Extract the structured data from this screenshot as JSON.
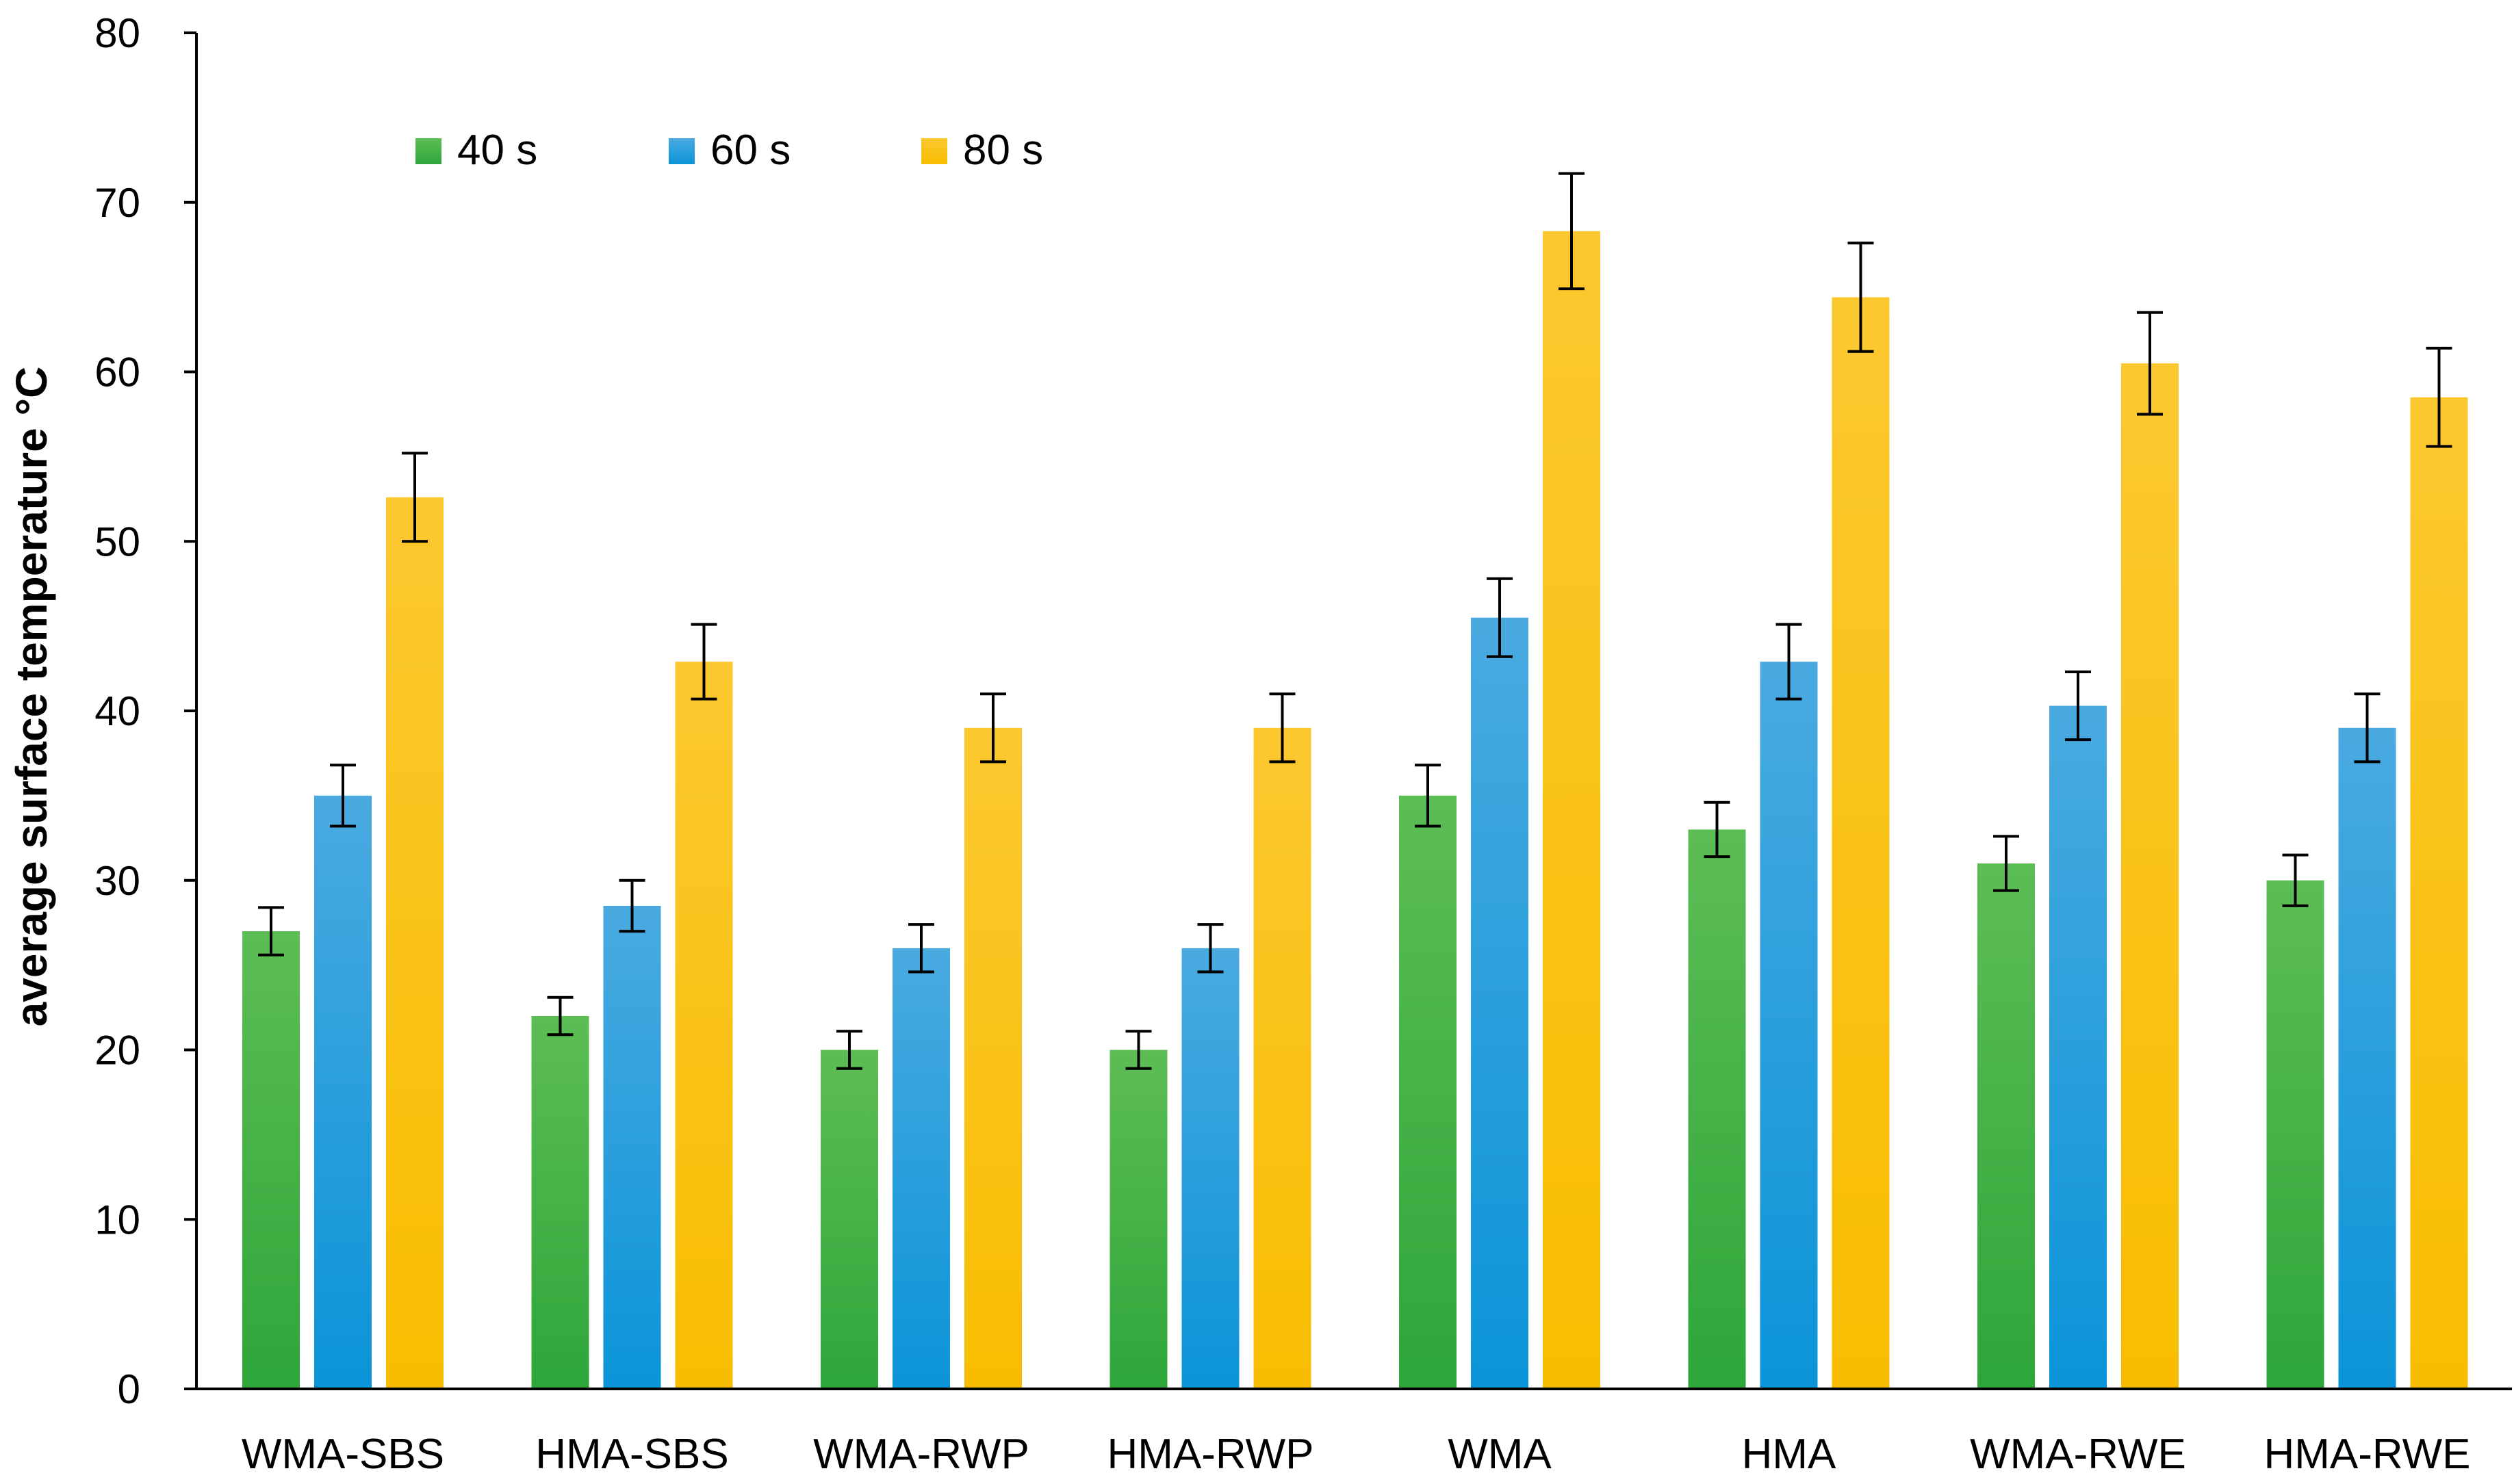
{
  "chart_data": {
    "type": "bar",
    "title": "",
    "xlabel": "",
    "ylabel": "average surface temperature °C",
    "ylim": [
      0,
      80
    ],
    "yticks": [
      "0",
      "10",
      "20",
      "30",
      "40",
      "50",
      "60",
      "70",
      "80"
    ],
    "grid": false,
    "legend_position": "top-left",
    "categories": [
      "WMA-SBS",
      "HMA-SBS",
      "WMA-RWP",
      "HMA-RWP",
      "WMA",
      "HMA",
      "WMA-RWE",
      "HMA-RWE"
    ],
    "series": [
      {
        "name": "40 s",
        "color": "#2ea63a",
        "color_light": "#5dbd55",
        "values": [
          27,
          22,
          20,
          20,
          35,
          33,
          31,
          30
        ],
        "errors": [
          1.4,
          1.1,
          1.1,
          1.1,
          1.8,
          1.6,
          1.6,
          1.5
        ]
      },
      {
        "name": "60 s",
        "color": "#0b94d8",
        "color_light": "#4aaae0",
        "values": [
          35,
          28.5,
          26,
          26,
          45.5,
          42.9,
          40.3,
          39
        ],
        "errors": [
          1.8,
          1.5,
          1.4,
          1.4,
          2.3,
          2.2,
          2.0,
          2.0
        ]
      },
      {
        "name": "80 s",
        "color": "#f8bd00",
        "color_light": "#fcc830",
        "values": [
          52.6,
          42.9,
          39,
          39,
          68.3,
          64.4,
          60.5,
          58.5
        ],
        "errors": [
          2.6,
          2.2,
          2.0,
          2.0,
          3.4,
          3.2,
          3.0,
          2.9
        ]
      }
    ]
  }
}
